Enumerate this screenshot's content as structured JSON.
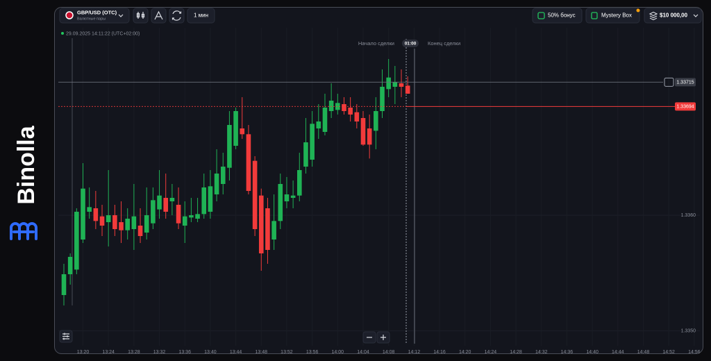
{
  "brand": "Binolla",
  "toolbar": {
    "asset": "GBP/USD (OTC)",
    "asset_group": "Валютные пары",
    "timeframe": "1 мин",
    "bonus": "50% бонус",
    "mystery_box": "Mystery Box",
    "balance": "$10 000,00"
  },
  "timestamp": "29.09.2025 14:11:22 (UTC+02:00)",
  "trade": {
    "start_label": "Начало сделки",
    "timer": "01:00",
    "end_label": "Конец сделки"
  },
  "chart": {
    "type": "candlestick",
    "up_color": "#1fb355",
    "down_color": "#f23b3b",
    "ylim": [
      1.33489,
      1.33756
    ],
    "yticks": [
      {
        "value": 1.336,
        "label": "1.3360"
      },
      {
        "value": 1.335,
        "label": "1.3350"
      }
    ],
    "xticks": [
      "13:20",
      "13:24",
      "13:28",
      "13:32",
      "13:36",
      "13:40",
      "13:44",
      "13:48",
      "13:52",
      "13:56",
      "14:00",
      "14:04",
      "14:08",
      "14:12",
      "14:16",
      "14:20",
      "14:24",
      "14:28",
      "14:32",
      "14:36",
      "14:40",
      "14:44",
      "14:48",
      "14:52",
      "14:56"
    ],
    "current_price": 1.33694,
    "crosshair_price": 1.33715,
    "ohlc": [
      [
        1.33531,
        1.33558,
        1.33522,
        1.33549
      ],
      [
        1.33549,
        1.33567,
        1.3354,
        1.33564
      ],
      [
        1.33553,
        1.33606,
        1.33549,
        1.33603
      ],
      [
        1.33579,
        1.33645,
        1.33576,
        1.33623
      ],
      [
        1.33603,
        1.33624,
        1.33597,
        1.33607
      ],
      [
        1.33606,
        1.33621,
        1.33588,
        1.33595
      ],
      [
        1.33599,
        1.33609,
        1.33582,
        1.33591
      ],
      [
        1.33594,
        1.33639,
        1.33573,
        1.336
      ],
      [
        1.336,
        1.33609,
        1.33582,
        1.33588
      ],
      [
        1.33594,
        1.33612,
        1.33576,
        1.33587
      ],
      [
        1.33587,
        1.33606,
        1.33579,
        1.33597
      ],
      [
        1.33588,
        1.33627,
        1.3357,
        1.33599
      ],
      [
        1.33591,
        1.33606,
        1.33576,
        1.33582
      ],
      [
        1.33585,
        1.33624,
        1.33579,
        1.336
      ],
      [
        1.33593,
        1.33624,
        1.33588,
        1.33613
      ],
      [
        1.33605,
        1.33639,
        1.33597,
        1.33617
      ],
      [
        1.33615,
        1.33636,
        1.33597,
        1.33603
      ],
      [
        1.33612,
        1.33627,
        1.336,
        1.33615
      ],
      [
        1.33609,
        1.33624,
        1.33588,
        1.33593
      ],
      [
        1.33591,
        1.33612,
        1.33576,
        1.33599
      ],
      [
        1.33598,
        1.33615,
        1.33594,
        1.336
      ],
      [
        1.33597,
        1.33615,
        1.33594,
        1.33601
      ],
      [
        1.33601,
        1.33636,
        1.33597,
        1.33624
      ],
      [
        1.33603,
        1.33639,
        1.33597,
        1.33625
      ],
      [
        1.33618,
        1.33657,
        1.33612,
        1.33636
      ],
      [
        1.33627,
        1.33654,
        1.33618,
        1.33642
      ],
      [
        1.33641,
        1.3369,
        1.3363,
        1.33678
      ],
      [
        1.3366,
        1.33693,
        1.33657,
        1.3369
      ],
      [
        1.33675,
        1.33702,
        1.33666,
        1.3367
      ],
      [
        1.3367,
        1.33678,
        1.33618,
        1.33621
      ],
      [
        1.33647,
        1.33651,
        1.33582,
        1.33588
      ],
      [
        1.33617,
        1.33623,
        1.33552,
        1.33567
      ],
      [
        1.33606,
        1.33615,
        1.33558,
        1.3357
      ],
      [
        1.33579,
        1.33618,
        1.3357,
        1.33595
      ],
      [
        1.33595,
        1.33636,
        1.33588,
        1.33627
      ],
      [
        1.33612,
        1.33633,
        1.33606,
        1.33618
      ],
      [
        1.33615,
        1.3363,
        1.33606,
        1.33617
      ],
      [
        1.33617,
        1.33654,
        1.33612,
        1.33639
      ],
      [
        1.33642,
        1.33684,
        1.33636,
        1.33663
      ],
      [
        1.33648,
        1.3369,
        1.33642,
        1.33679
      ],
      [
        1.33675,
        1.33696,
        1.33666,
        1.33681
      ],
      [
        1.33672,
        1.33705,
        1.33669,
        1.33693
      ],
      [
        1.3369,
        1.33714,
        1.33684,
        1.33699
      ],
      [
        1.33691,
        1.33705,
        1.33687,
        1.33697
      ],
      [
        1.33696,
        1.33702,
        1.33687,
        1.3369
      ],
      [
        1.33693,
        1.33702,
        1.33681,
        1.33687
      ],
      [
        1.33689,
        1.33696,
        1.33675,
        1.33681
      ],
      [
        1.33684,
        1.3369,
        1.3366,
        1.33661
      ],
      [
        1.33675,
        1.33687,
        1.33649,
        1.33661
      ],
      [
        1.33673,
        1.33702,
        1.33657,
        1.3369
      ],
      [
        1.3369,
        1.33726,
        1.33684,
        1.33711
      ],
      [
        1.33709,
        1.33735,
        1.33702,
        1.33719
      ],
      [
        1.33711,
        1.33729,
        1.33696,
        1.33715
      ],
      [
        1.33714,
        1.33726,
        1.33702,
        1.33711
      ],
      [
        1.33712,
        1.3372,
        1.33705,
        1.33705
      ]
    ]
  }
}
